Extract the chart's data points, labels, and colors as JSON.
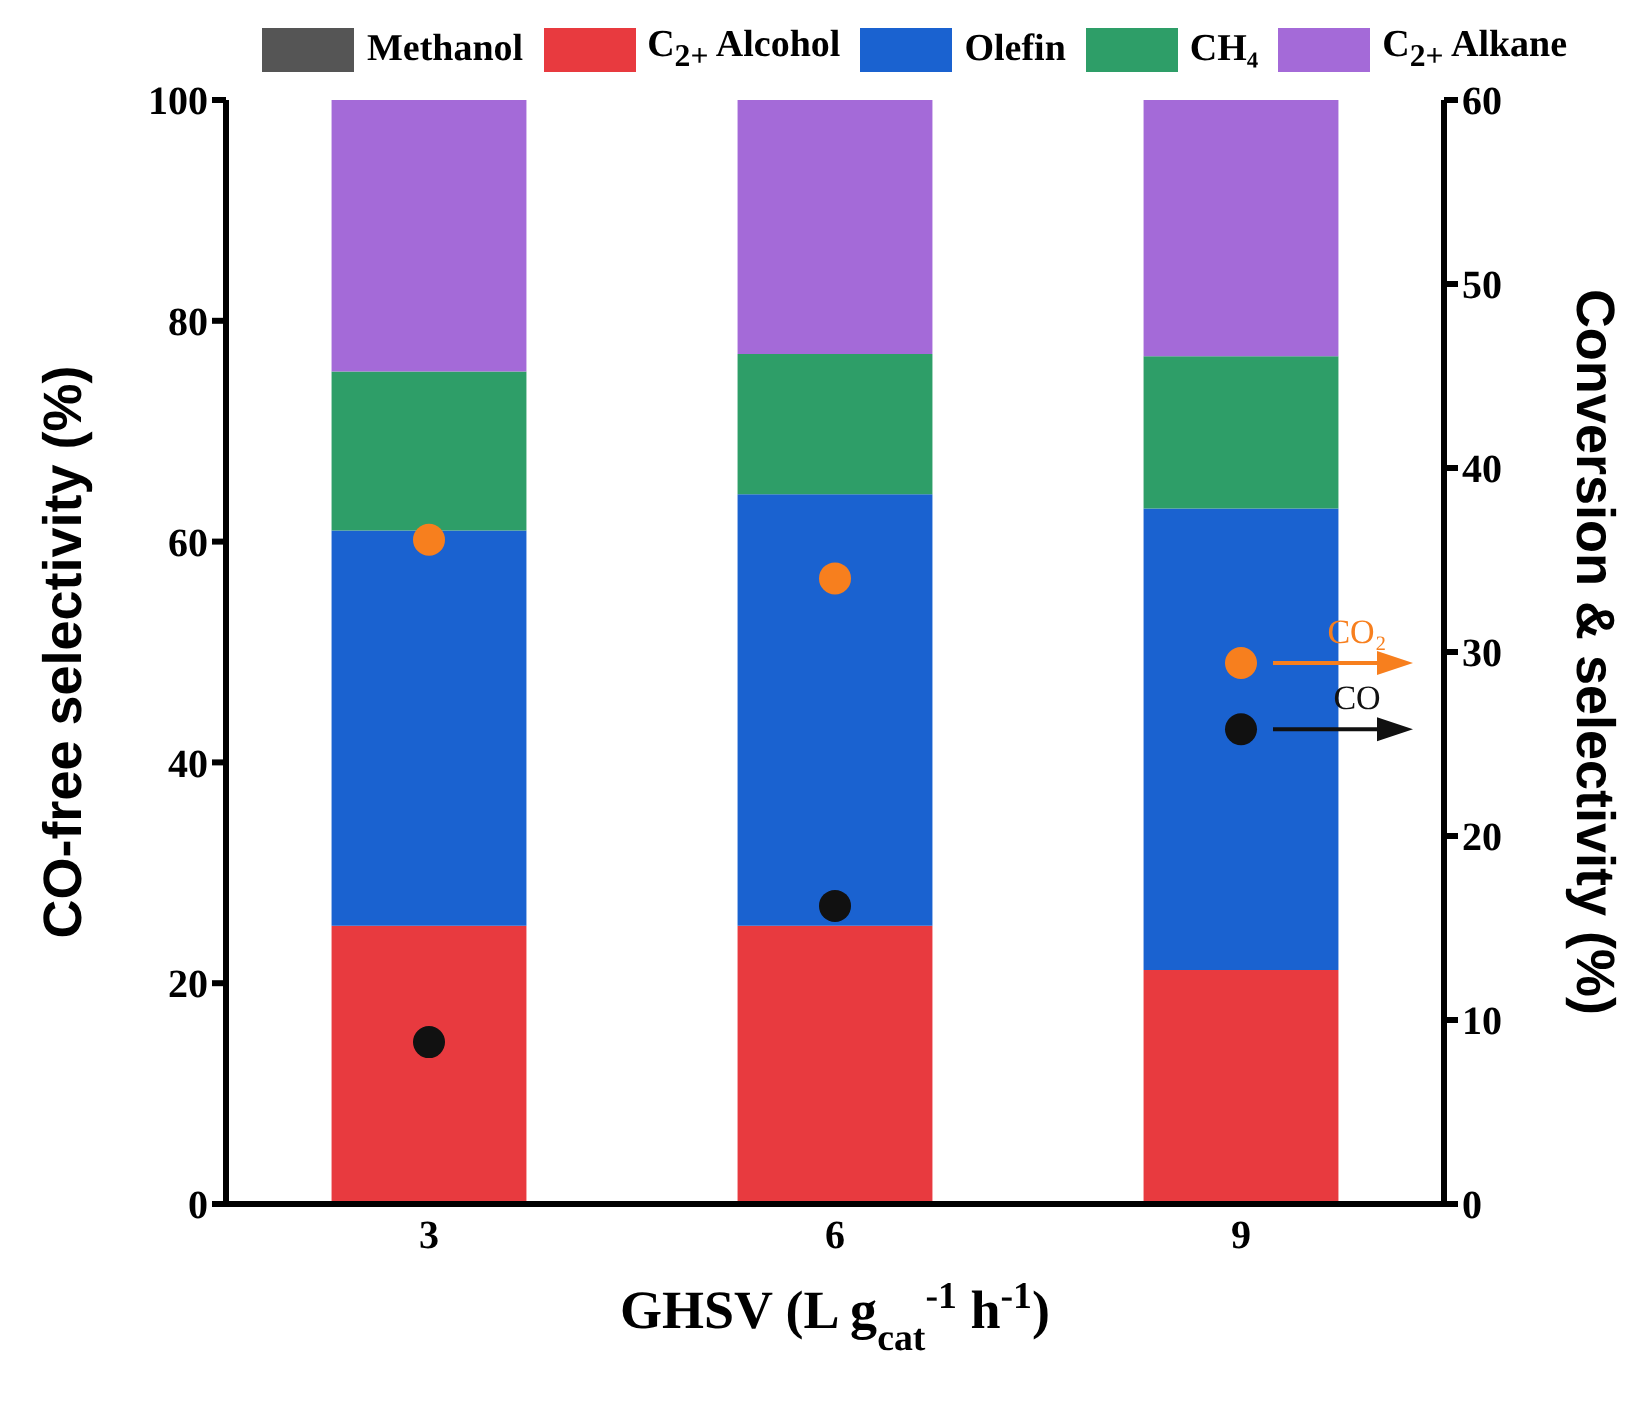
{
  "chart_data": {
    "type": "bar",
    "stacked": true,
    "categories": [
      "3",
      "6",
      "9"
    ],
    "xlabel": "GHSV (L g$_{cat}$$^{-1}$ h$^{-1}$)",
    "ylabel": "CO-free selectivity (%)",
    "y2label": "Conversion & selectivity (%)",
    "series": [
      {
        "name": "Methanol",
        "color": "#555555",
        "values": [
          0,
          0,
          0
        ]
      },
      {
        "name": "C$_{2+}$ Alcohol",
        "color": "#e83a3f",
        "values": [
          25.2,
          25.2,
          21.2
        ]
      },
      {
        "name": "Olefin",
        "color": "#1a62d0",
        "values": [
          35.8,
          39.1,
          41.8
        ]
      },
      {
        "name": "CH₄",
        "color": "#2e9e68",
        "values": [
          14.4,
          12.7,
          13.8
        ]
      },
      {
        "name": "C$_{2+}$ Alkane",
        "color": "#a46ad8",
        "values": [
          24.6,
          23,
          23.2
        ]
      },
      {
        "name": "CO₂",
        "type": "scatter",
        "axis": "y2",
        "color": "#f77f1e",
        "values": [
          36.1,
          34,
          29.4
        ]
      },
      {
        "name": "CO",
        "type": "scatter",
        "axis": "y2",
        "color": "#111111",
        "values": [
          8.8,
          16.2,
          25.8
        ]
      }
    ],
    "ylim": [
      0,
      100
    ],
    "yticks": [
      0,
      20,
      40,
      60,
      80,
      100
    ],
    "y2lim": [
      0,
      60
    ],
    "y2ticks": [
      0,
      10,
      20,
      30,
      40,
      50,
      60
    ],
    "legend": "top",
    "grid": false,
    "marker": "circle"
  }
}
